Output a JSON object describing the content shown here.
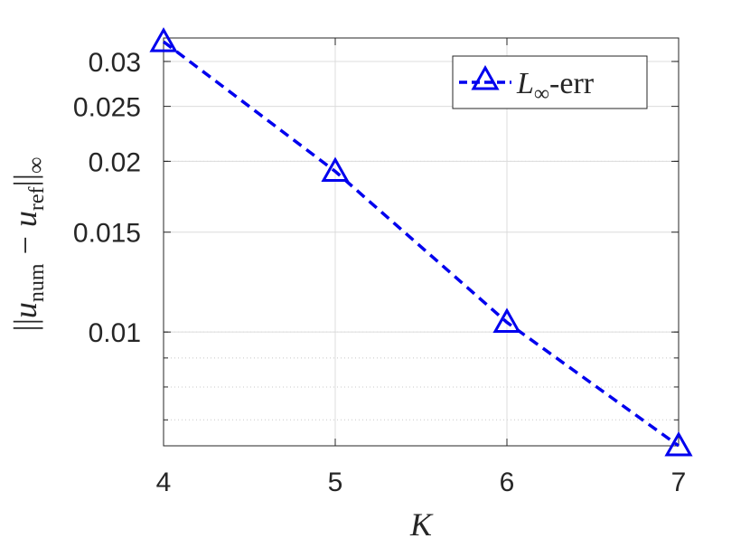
{
  "chart_data": {
    "type": "line",
    "title": "",
    "x": [
      4,
      5,
      6,
      7
    ],
    "xlim": [
      4,
      7
    ],
    "xticks": [
      4,
      5,
      6,
      7
    ],
    "xlabel": "K",
    "ylabel": {
      "prefix": "||",
      "var1": "u",
      "sub1": "num",
      "minus": "−",
      "var2": "u",
      "sub2": "ref",
      "suffix": "||",
      "sub3": "∞"
    },
    "yscale": "log",
    "ylim": [
      0.0063,
      0.033
    ],
    "yticks": [
      0.01,
      0.015,
      0.02,
      0.025,
      0.03
    ],
    "ytick_labels": [
      "0.01",
      "0.015",
      "0.02",
      "0.025",
      "0.03"
    ],
    "grid": true,
    "series": [
      {
        "name": {
          "var": "L",
          "sub": "∞",
          "tail": "-err"
        },
        "values": [
          0.0325,
          0.0192,
          0.0104,
          0.0063
        ],
        "color": "#0000ee",
        "line_style": "dashed",
        "marker": "triangle"
      }
    ],
    "legend_position": "top-right"
  }
}
